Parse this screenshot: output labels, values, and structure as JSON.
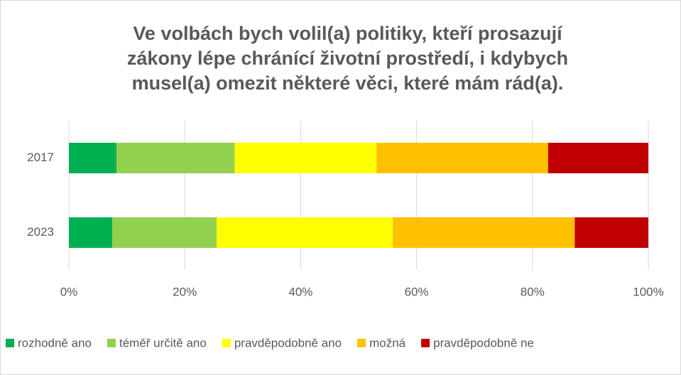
{
  "chart_data": {
    "type": "bar",
    "orientation": "horizontal",
    "stacked": true,
    "title": "Ve volbách bych volil(a) politiky, kteří prosazují\nzákony lépe chránící životní prostředí, i kdybych\nmusel(a) omezit některé věci, které mám rád(a).",
    "categories": [
      "2017",
      "2023"
    ],
    "series": [
      {
        "name": "rozhodně ano",
        "color": "#00b050",
        "values": [
          8.2,
          7.5
        ]
      },
      {
        "name": "téměř určitě ano",
        "color": "#92d050",
        "values": [
          20.4,
          18.0
        ]
      },
      {
        "name": "pravděpodobně ano",
        "color": "#ffff00",
        "values": [
          24.5,
          30.4
        ]
      },
      {
        "name": "možná",
        "color": "#ffc000",
        "values": [
          29.6,
          31.4
        ]
      },
      {
        "name": "pravděpodobně ne",
        "color": "#c00000",
        "values": [
          17.3,
          12.7
        ]
      }
    ],
    "xlim": [
      0,
      100
    ],
    "xticks": [
      {
        "value": 0,
        "label": "0%"
      },
      {
        "value": 20,
        "label": "20%"
      },
      {
        "value": 40,
        "label": "40%"
      },
      {
        "value": 60,
        "label": "60%"
      },
      {
        "value": 80,
        "label": "80%"
      },
      {
        "value": 100,
        "label": "100%"
      }
    ],
    "grid": true,
    "legend": "bottom"
  }
}
